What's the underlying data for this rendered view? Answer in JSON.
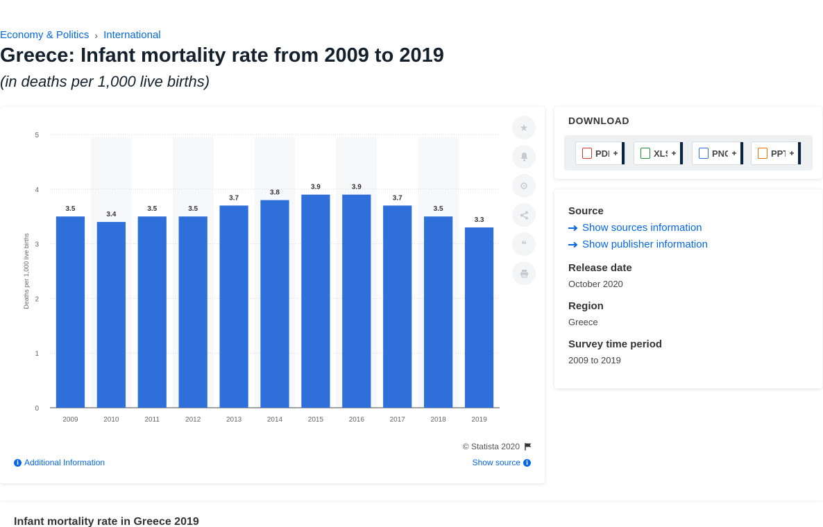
{
  "breadcrumb": {
    "item1": "Economy & Politics",
    "separator": "›",
    "item2": "International"
  },
  "page_title": "Greece: Infant mortality rate from 2009 to 2019",
  "page_subtitle": "(in deaths per 1,000 live births)",
  "chart_data": {
    "type": "bar",
    "title": "",
    "xlabel": "",
    "ylabel": "Deaths per 1,000 live births",
    "categories": [
      "2009",
      "2010",
      "2011",
      "2012",
      "2013",
      "2014",
      "2015",
      "2016",
      "2017",
      "2018",
      "2019"
    ],
    "values": [
      3.5,
      3.4,
      3.5,
      3.5,
      3.7,
      3.8,
      3.9,
      3.9,
      3.7,
      3.5,
      3.3
    ],
    "ylim": [
      0,
      5
    ],
    "yticks": [
      0,
      1,
      2,
      3,
      4,
      5
    ],
    "grid": true,
    "bar_color": "#2f6fd9",
    "data_labels": true
  },
  "chart_footer": {
    "copyright": "© Statista 2020",
    "additional_info": "Additional Information",
    "show_source": "Show source"
  },
  "tools": [
    {
      "name": "star-icon",
      "glyph": "★"
    },
    {
      "name": "bell-icon",
      "glyph": "🔔"
    },
    {
      "name": "gear-icon",
      "glyph": "⚙"
    },
    {
      "name": "share-icon",
      "glyph": "⤴"
    },
    {
      "name": "quote-icon",
      "glyph": "❝"
    },
    {
      "name": "print-icon",
      "glyph": "⎙"
    }
  ],
  "download": {
    "title": "DOWNLOAD",
    "buttons": [
      {
        "label": "PDF",
        "plus": "+",
        "icon_color": "#d9342b"
      },
      {
        "label": "XLS",
        "plus": "+",
        "icon_color": "#1e8e3e"
      },
      {
        "label": "PNG",
        "plus": "+",
        "icon_color": "#2f6fd9"
      },
      {
        "label": "PPT",
        "plus": "+",
        "icon_color": "#e8710a"
      }
    ]
  },
  "meta": {
    "source_label": "Source",
    "sources_link": "Show sources information",
    "publisher_link": "Show publisher information",
    "release_label": "Release date",
    "release_value": "October 2020",
    "region_label": "Region",
    "region_value": "Greece",
    "survey_label": "Survey time period",
    "survey_value": "2009 to 2019"
  },
  "bottom_title": "Infant mortality rate in Greece 2019",
  "colors": {
    "accent": "#0666e5",
    "bar": "#2f6fd9",
    "navy": "#0a2540"
  }
}
